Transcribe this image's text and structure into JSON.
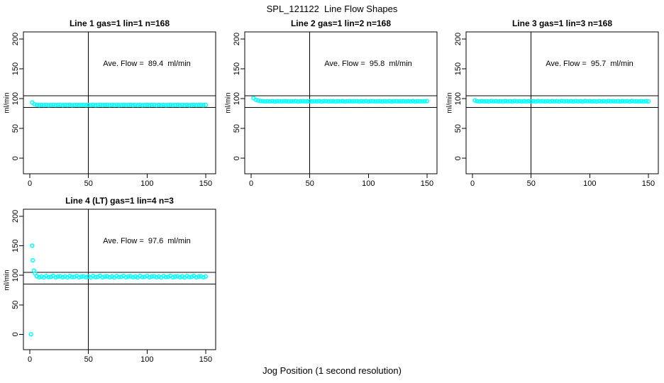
{
  "header": {
    "title": "SPL_121122  Line Flow Shapes"
  },
  "footer": {
    "xlabel": "Jog Position (1 second resolution)"
  },
  "colors": {
    "marker": "#00FFFF",
    "axis": "#000000",
    "background": "#FFFFFF"
  },
  "chart_data": [
    {
      "type": "scatter",
      "title": "Line 1 gas=1 lin=1 n=168",
      "annotation": "Ave. Flow =  89.4  ml/min",
      "ave_flow_ml_min": 89.4,
      "n": 168,
      "ylabel": "ml/min",
      "xlim": [
        -5.5,
        158.5
      ],
      "ylim": [
        -26,
        212
      ],
      "x_ticks": [
        0,
        50,
        100,
        150
      ],
      "y_ticks": [
        0,
        50,
        100,
        150,
        200
      ],
      "vline_x": 50,
      "hlines": [
        105,
        85
      ],
      "legend": "none",
      "marker": "open-circle",
      "marker_color": "#00FFFF",
      "points": {
        "x0": 2,
        "dx": 2,
        "y": [
          93.6,
          90.6,
          89.5,
          89.1,
          89.4,
          89.2,
          89.6,
          89.0,
          89.3,
          89.5,
          89.2,
          89.4,
          89.5,
          89.1,
          89.4,
          89.2,
          89.6,
          89.0,
          89.3,
          89.5,
          89.2,
          89.4,
          89.5,
          89.1,
          89.4,
          89.2,
          89.6,
          89.0,
          89.3,
          89.5,
          89.2,
          89.4,
          89.5,
          89.1,
          89.4,
          89.2,
          89.6,
          89.0,
          89.3,
          89.5,
          89.2,
          89.4,
          89.5,
          89.1,
          89.4,
          89.2,
          89.6,
          89.0,
          89.3,
          89.5,
          89.2,
          89.4,
          89.5,
          89.1,
          89.4,
          89.2,
          89.6,
          89.0,
          89.3,
          89.5,
          89.2,
          89.4,
          89.5,
          89.1,
          89.4,
          89.2,
          89.6,
          89.0,
          89.3,
          89.5,
          89.2,
          89.4,
          89.5,
          89.1,
          89.4
        ]
      },
      "extra_points": []
    },
    {
      "type": "scatter",
      "title": "Line 2 gas=1 lin=2 n=168",
      "annotation": "Ave. Flow =  95.8  ml/min",
      "ave_flow_ml_min": 95.8,
      "n": 168,
      "ylabel": "ml/min",
      "xlim": [
        -5.5,
        158.5
      ],
      "ylim": [
        -26,
        212
      ],
      "x_ticks": [
        0,
        50,
        100,
        150
      ],
      "y_ticks": [
        0,
        50,
        100,
        150,
        200
      ],
      "vline_x": 50,
      "hlines": [
        105,
        85
      ],
      "legend": "none",
      "marker": "open-circle",
      "marker_color": "#00FFFF",
      "points": {
        "x0": 2,
        "dx": 2,
        "y": [
          100.9,
          98.1,
          96.8,
          96.1,
          95.8,
          95.4,
          95.9,
          95.5,
          96.0,
          95.3,
          95.7,
          95.9,
          95.5,
          95.7,
          95.8,
          95.4,
          95.9,
          95.5,
          96.0,
          95.3,
          95.7,
          95.9,
          95.5,
          95.7,
          95.8,
          95.4,
          95.9,
          95.5,
          96.0,
          95.3,
          95.7,
          95.9,
          95.5,
          95.7,
          95.8,
          95.4,
          95.9,
          95.5,
          96.0,
          95.3,
          95.7,
          95.9,
          95.5,
          95.7,
          95.8,
          95.4,
          95.9,
          95.5,
          96.0,
          95.3,
          95.7,
          95.9,
          95.5,
          95.7,
          95.8,
          95.4,
          95.9,
          95.5,
          96.0,
          95.3,
          95.7,
          95.9,
          95.5,
          95.7,
          95.8,
          95.4,
          95.9,
          95.5,
          96.0,
          95.3,
          95.7,
          95.9,
          95.5,
          95.7,
          95.8
        ]
      },
      "extra_points": []
    },
    {
      "type": "scatter",
      "title": "Line 3 gas=1 lin=3 n=168",
      "annotation": "Ave. Flow =  95.7  ml/min",
      "ave_flow_ml_min": 95.7,
      "n": 168,
      "ylabel": "ml/min",
      "xlim": [
        -5.5,
        158.5
      ],
      "ylim": [
        -26,
        212
      ],
      "x_ticks": [
        0,
        50,
        100,
        150
      ],
      "y_ticks": [
        0,
        50,
        100,
        150,
        200
      ],
      "vline_x": 50,
      "hlines": [
        105,
        85
      ],
      "legend": "none",
      "marker": "open-circle",
      "marker_color": "#00FFFF",
      "points": {
        "x0": 2,
        "dx": 2,
        "y": [
          97.0,
          95.9,
          95.4,
          96.0,
          95.5,
          95.8,
          95.3,
          96.1,
          95.6,
          95.9,
          95.5,
          95.9,
          95.4,
          96.0,
          95.5,
          95.8,
          95.3,
          96.1,
          95.6,
          95.9,
          95.5,
          95.9,
          95.4,
          96.0,
          95.5,
          95.8,
          95.3,
          96.1,
          95.6,
          95.9,
          95.5,
          95.9,
          95.4,
          96.0,
          95.5,
          95.8,
          95.3,
          96.1,
          95.6,
          95.9,
          95.5,
          95.9,
          95.4,
          96.0,
          95.5,
          95.8,
          95.3,
          96.1,
          95.6,
          95.9,
          95.5,
          95.9,
          95.4,
          96.0,
          95.5,
          95.8,
          95.3,
          96.1,
          95.6,
          95.9,
          95.5,
          95.9,
          95.4,
          96.0,
          95.5,
          95.8,
          95.3,
          96.1,
          95.6,
          95.9,
          95.5,
          95.9,
          95.4,
          96.0,
          95.5
        ]
      },
      "extra_points": []
    },
    {
      "type": "scatter",
      "title": "Line 4 (LT) gas=1 lin=4 n=3",
      "annotation": "Ave. Flow =  97.6  ml/min",
      "ave_flow_ml_min": 97.6,
      "n": 3,
      "ylabel": "ml/min",
      "xlim": [
        -5.5,
        158.5
      ],
      "ylim": [
        -26,
        212
      ],
      "x_ticks": [
        0,
        50,
        100,
        150
      ],
      "y_ticks": [
        0,
        50,
        100,
        150,
        200
      ],
      "vline_x": 50,
      "hlines": [
        105,
        85
      ],
      "legend": "none",
      "marker": "open-circle",
      "marker_color": "#00FFFF",
      "points": {
        "x0": 6,
        "dx": 2,
        "y": [
          98.3,
          96.7,
          98.0,
          96.4,
          98.8,
          97.1,
          97.4,
          99.0,
          96.6,
          97.9,
          98.3,
          96.7,
          98.0,
          96.4,
          98.8,
          97.1,
          97.4,
          99.0,
          96.6,
          97.9,
          98.3,
          96.7,
          98.0,
          96.4,
          98.8,
          97.1,
          97.4,
          99.0,
          96.6,
          97.9,
          98.3,
          96.7,
          98.0,
          96.4,
          98.8,
          97.1,
          97.4,
          99.0,
          96.6,
          97.9,
          98.3,
          96.7,
          98.0,
          96.4,
          98.8,
          97.1,
          97.4,
          99.0,
          96.6,
          97.9,
          98.3,
          96.7,
          98.0,
          96.4,
          98.8,
          97.1,
          97.4,
          99.0,
          96.6,
          97.9,
          98.3,
          96.7,
          98.0,
          96.4,
          98.8,
          97.1,
          97.4,
          99.0,
          96.6,
          97.9,
          98.3,
          96.7,
          98.0
        ]
      },
      "extra_points": [
        [
          1,
          0
        ],
        [
          2,
          150.2
        ],
        [
          2.5,
          125.4
        ],
        [
          3.5,
          108.0
        ],
        [
          4.5,
          103.2
        ]
      ]
    }
  ]
}
